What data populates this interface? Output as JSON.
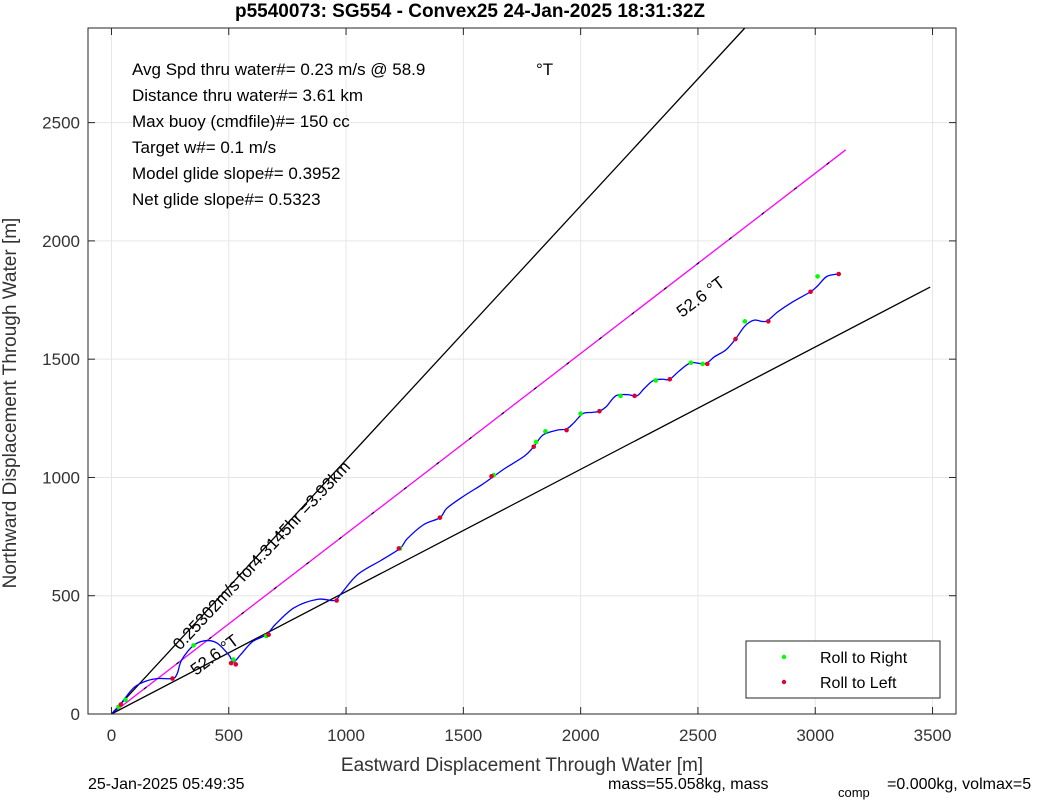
{
  "chart_data": {
    "type": "line",
    "title": "p5540073: SG554 - Convex25 24-Jan-2025 18:31:32Z",
    "xlabel": "Eastward Displacement Through Water [m]",
    "ylabel": "Northward Displacement Through Water [m]",
    "xlim": [
      -100,
      3600
    ],
    "ylim": [
      0,
      2900
    ],
    "xticks": [
      0,
      500,
      1000,
      1500,
      2000,
      2500,
      3000,
      3500
    ],
    "yticks": [
      0,
      500,
      1000,
      1500,
      2000,
      2500
    ],
    "grid": true,
    "legend_position": "bottom-right",
    "info_lines": [
      "Avg Spd thru water#=  0.23 m/s @  58.9",
      "Distance thru water#=  3.61 km",
      "Max buoy (cmdfile)#= 150 cc",
      "Target w#= 0.1 m/s",
      "Model glide slope#= 0.3952",
      "Net glide slope#= 0.5323"
    ],
    "info_degree_unit": "°T",
    "annotations": [
      "52.6 °T",
      "0.25302m/s for4.3145hr =3.93km",
      "52.6 °T"
    ],
    "reference_lines": [
      {
        "name": "upper bound",
        "color": "#000000",
        "x": [
          0,
          2700
        ],
        "y": [
          0,
          2900
        ]
      },
      {
        "name": "heading line",
        "color": "#ff00ff",
        "x": [
          0,
          3130
        ],
        "y": [
          0,
          2385
        ]
      },
      {
        "name": "lower bound",
        "color": "#000000",
        "x": [
          0,
          3490
        ],
        "y": [
          0,
          1805
        ]
      }
    ],
    "track": {
      "name": "track",
      "color": "#0000ff",
      "x": [
        0,
        30,
        60,
        100,
        150,
        200,
        260,
        280,
        300,
        350,
        400,
        450,
        500,
        520,
        550,
        600,
        660,
        700,
        780,
        880,
        950,
        980,
        1050,
        1150,
        1230,
        1260,
        1330,
        1400,
        1430,
        1500,
        1580,
        1630,
        1680,
        1760,
        1800,
        1840,
        1900,
        1940,
        1970,
        2010,
        2050,
        2080,
        2110,
        2150,
        2200,
        2240,
        2270,
        2310,
        2350,
        2380,
        2420,
        2470,
        2530,
        2570,
        2620,
        2660,
        2700,
        2740,
        2790,
        2840,
        2900,
        2980,
        3010,
        3050,
        3100
      ],
      "y": [
        0,
        30,
        70,
        115,
        140,
        150,
        150,
        170,
        230,
        290,
        310,
        300,
        250,
        220,
        250,
        305,
        335,
        380,
        450,
        485,
        480,
        510,
        590,
        650,
        700,
        740,
        800,
        830,
        870,
        920,
        970,
        1005,
        1040,
        1090,
        1130,
        1180,
        1200,
        1205,
        1230,
        1270,
        1275,
        1280,
        1300,
        1345,
        1350,
        1345,
        1375,
        1410,
        1415,
        1415,
        1450,
        1485,
        1480,
        1510,
        1540,
        1585,
        1640,
        1665,
        1660,
        1700,
        1740,
        1785,
        1810,
        1850,
        1860
      ]
    },
    "series": [
      {
        "name": "Roll to Right",
        "color": "#00ff00",
        "x": [
          30,
          60,
          350,
          520,
          660,
          1230,
          1400,
          1630,
          1810,
          1850,
          2000,
          2170,
          2320,
          2470,
          2520,
          2700,
          3010
        ],
        "y": [
          30,
          60,
          290,
          230,
          330,
          700,
          830,
          1010,
          1150,
          1195,
          1270,
          1345,
          1410,
          1485,
          1480,
          1660,
          1850
        ]
      },
      {
        "name": "Roll to Left",
        "color": "#dd0033",
        "x": [
          40,
          260,
          510,
          530,
          670,
          960,
          1225,
          1400,
          1620,
          1800,
          1940,
          2080,
          2230,
          2380,
          2540,
          2660,
          2800,
          2980,
          3100
        ],
        "y": [
          40,
          150,
          215,
          210,
          335,
          480,
          700,
          830,
          1005,
          1130,
          1200,
          1280,
          1345,
          1415,
          1480,
          1585,
          1660,
          1785,
          1860
        ]
      }
    ]
  },
  "footer": {
    "timestamp": "25-Jan-2025 05:49:35",
    "mass_text": "mass=55.058kg, mass",
    "comp_sub": "comp",
    "comp_text": "=0.000kg, volmax=5"
  }
}
